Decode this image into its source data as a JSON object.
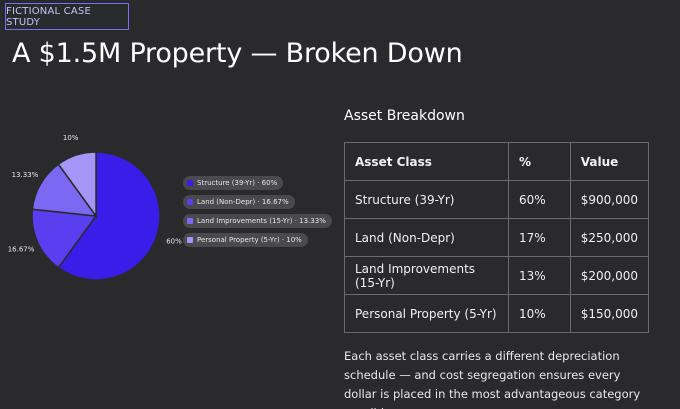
{
  "badge": "FICTIONAL CASE STUDY",
  "title": "A $1.5M Property — Broken Down",
  "chart_data": {
    "type": "pie",
    "title": "",
    "categories": [
      "Structure (39-Yr)",
      "Land (Non-Depr)",
      "Land Improvements (15-Yr)",
      "Personal Property (5-Yr)"
    ],
    "values": [
      60,
      16.67,
      13.33,
      10
    ],
    "slice_labels": [
      "60%",
      "16.67%",
      "13.33%",
      "10%"
    ],
    "legend_labels": [
      "Structure (39-Yr) · 60%",
      "Land (Non-Depr) · 16.67%",
      "Land Improvements (15-Yr) · 13.33%",
      "Personal Property (5-Yr) · 10%"
    ],
    "colors": [
      "#3a1de8",
      "#5a3ef0",
      "#7d68f3",
      "#a596f8"
    ],
    "legend_placement": "right"
  },
  "table": {
    "title": "Asset Breakdown",
    "headers": [
      "Asset Class",
      "%",
      "Value"
    ],
    "rows": [
      [
        "Structure (39-Yr)",
        "60%",
        "$900,000"
      ],
      [
        "Land (Non-Depr)",
        "17%",
        "$250,000"
      ],
      [
        "Land Improvements (15-Yr)",
        "13%",
        "$200,000"
      ],
      [
        "Personal Property (5-Yr)",
        "10%",
        "$150,000"
      ]
    ]
  },
  "note": "Each asset class carries a different depreciation schedule — and cost segregation ensures every dollar is placed in the most advantageous category possible."
}
